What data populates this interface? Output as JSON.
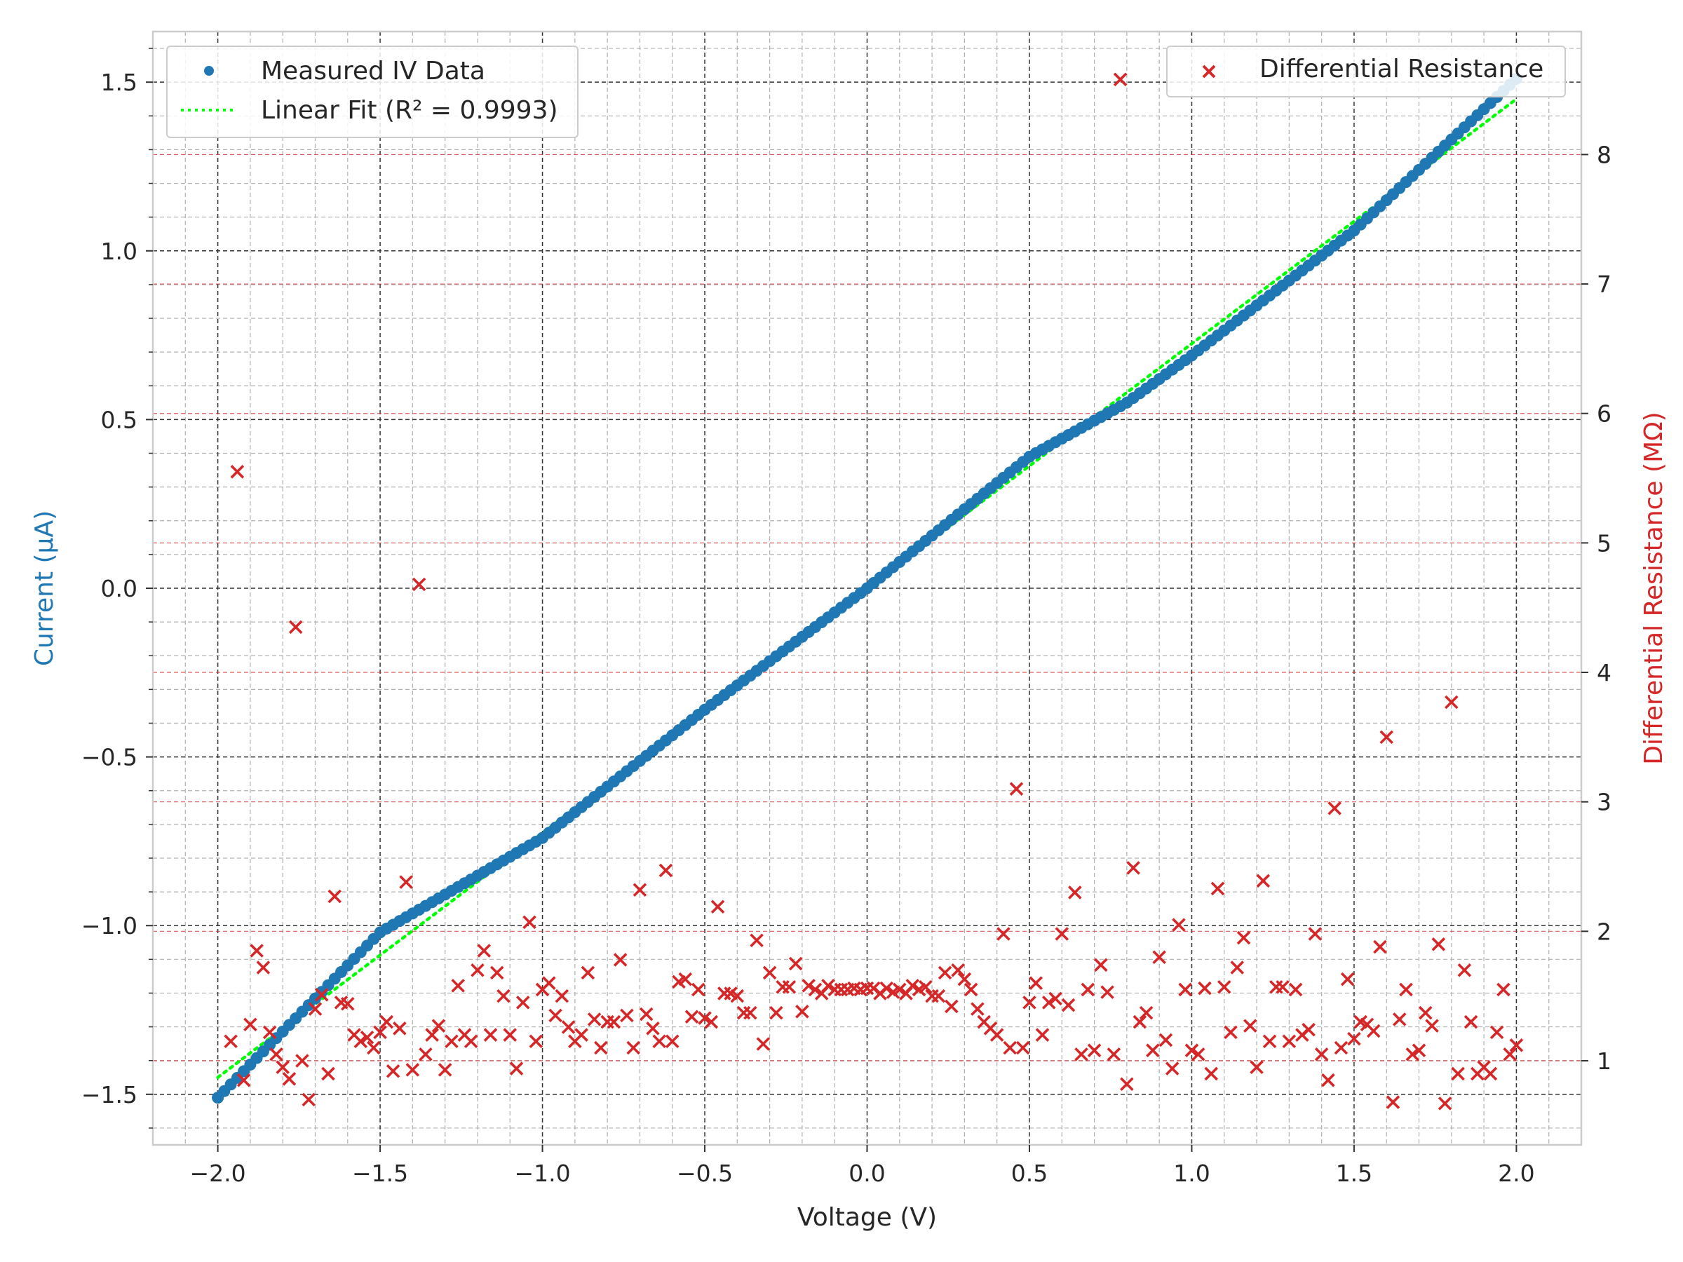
{
  "chart_data": {
    "type": "scatter",
    "title": "",
    "xlabel": "Voltage (V)",
    "ylabel_left": "Current (µA)",
    "ylabel_right": "Differential Resistance (MΩ)",
    "xlim": [
      -2.2,
      2.2
    ],
    "ylim_left": [
      -1.65,
      1.65
    ],
    "ylim_right": [
      0.35,
      8.95
    ],
    "x_ticks": [
      -2.0,
      -1.5,
      -1.0,
      -0.5,
      0.0,
      0.5,
      1.0,
      1.5,
      2.0
    ],
    "x_tick_labels": [
      "−2.0",
      "−1.5",
      "−1.0",
      "−0.5",
      "0.0",
      "0.5",
      "1.0",
      "1.5",
      "2.0"
    ],
    "y_left_ticks": [
      -1.5,
      -1.0,
      -0.5,
      0.0,
      0.5,
      1.0,
      1.5
    ],
    "y_left_tick_labels": [
      "−1.5",
      "−1.0",
      "−0.5",
      "0.0",
      "0.5",
      "1.0",
      "1.5"
    ],
    "y_right_ticks": [
      1,
      2,
      3,
      4,
      5,
      6,
      7,
      8
    ],
    "y_right_tick_labels": [
      "1",
      "2",
      "3",
      "4",
      "5",
      "6",
      "7",
      "8"
    ],
    "grid": true,
    "legend_left": {
      "placement": "top-left",
      "entries": [
        "Measured IV Data",
        "Linear Fit (R² = 0.9993)"
      ]
    },
    "legend_right": {
      "placement": "top-right",
      "entries": [
        "Differential Resistance"
      ]
    },
    "colors": {
      "iv": "#1f77b4",
      "fit": "#00ff00",
      "resistance": "#d62728",
      "left_label": "#1f77b4",
      "right_label": "#d62728"
    },
    "series": [
      {
        "name": "Measured IV Data",
        "type": "scatter",
        "axis": "left",
        "model": {
          "x_start": -2.0,
          "x_end": 2.0,
          "n_points": 201,
          "y_at": [
            [
              -2.0,
              -1.51
            ],
            [
              -1.5,
              -1.02
            ],
            [
              -1.0,
              -0.74
            ],
            [
              -0.5,
              -0.36
            ],
            [
              0.0,
              0.0
            ],
            [
              0.5,
              0.39
            ],
            [
              0.8,
              0.55
            ],
            [
              1.0,
              0.69
            ],
            [
              1.5,
              1.06
            ],
            [
              2.0,
              1.51
            ]
          ]
        }
      },
      {
        "name": "Linear Fit (R² = 0.9993)",
        "type": "line",
        "style": "dotted",
        "axis": "left",
        "points": [
          [
            -2.0,
            -1.45
          ],
          [
            2.0,
            1.45
          ]
        ]
      },
      {
        "name": "Differential Resistance",
        "type": "scatter",
        "axis": "right",
        "marker": "x",
        "points": [
          [
            -1.96,
            1.15
          ],
          [
            -1.94,
            5.55
          ],
          [
            -1.92,
            0.85
          ],
          [
            -1.9,
            1.28
          ],
          [
            -1.88,
            1.85
          ],
          [
            -1.86,
            1.72
          ],
          [
            -1.84,
            1.22
          ],
          [
            -1.82,
            1.05
          ],
          [
            -1.8,
            0.95
          ],
          [
            -1.78,
            0.86
          ],
          [
            -1.76,
            4.35
          ],
          [
            -1.74,
            1.0
          ],
          [
            -1.72,
            0.7
          ],
          [
            -1.7,
            1.4
          ],
          [
            -1.68,
            1.51
          ],
          [
            -1.66,
            0.9
          ],
          [
            -1.64,
            2.27
          ],
          [
            -1.62,
            1.45
          ],
          [
            -1.6,
            1.44
          ],
          [
            -1.58,
            1.2
          ],
          [
            -1.56,
            1.15
          ],
          [
            -1.54,
            1.18
          ],
          [
            -1.52,
            1.1
          ],
          [
            -1.5,
            1.22
          ],
          [
            -1.48,
            1.3
          ],
          [
            -1.46,
            0.92
          ],
          [
            -1.44,
            1.25
          ],
          [
            -1.42,
            2.38
          ],
          [
            -1.4,
            0.93
          ],
          [
            -1.38,
            4.68
          ],
          [
            -1.36,
            1.05
          ],
          [
            -1.34,
            1.2
          ],
          [
            -1.32,
            1.27
          ],
          [
            -1.3,
            0.93
          ],
          [
            -1.28,
            1.15
          ],
          [
            -1.26,
            1.58
          ],
          [
            -1.24,
            1.2
          ],
          [
            -1.22,
            1.15
          ],
          [
            -1.2,
            1.7
          ],
          [
            -1.18,
            1.85
          ],
          [
            -1.16,
            1.2
          ],
          [
            -1.14,
            1.68
          ],
          [
            -1.12,
            1.5
          ],
          [
            -1.1,
            1.2
          ],
          [
            -1.08,
            0.94
          ],
          [
            -1.06,
            1.45
          ],
          [
            -1.04,
            2.07
          ],
          [
            -1.02,
            1.15
          ],
          [
            -1.0,
            1.55
          ],
          [
            -0.98,
            1.6
          ],
          [
            -0.96,
            1.35
          ],
          [
            -0.94,
            1.5
          ],
          [
            -0.92,
            1.26
          ],
          [
            -0.9,
            1.15
          ],
          [
            -0.88,
            1.2
          ],
          [
            -0.86,
            1.68
          ],
          [
            -0.84,
            1.32
          ],
          [
            -0.82,
            1.1
          ],
          [
            -0.8,
            1.3
          ],
          [
            -0.78,
            1.3
          ],
          [
            -0.76,
            1.78
          ],
          [
            -0.74,
            1.35
          ],
          [
            -0.72,
            1.1
          ],
          [
            -0.7,
            2.32
          ],
          [
            -0.68,
            1.36
          ],
          [
            -0.66,
            1.25
          ],
          [
            -0.64,
            1.15
          ],
          [
            -0.62,
            2.47
          ],
          [
            -0.6,
            1.15
          ],
          [
            -0.58,
            1.61
          ],
          [
            -0.56,
            1.63
          ],
          [
            -0.54,
            1.34
          ],
          [
            -0.52,
            1.55
          ],
          [
            -0.5,
            1.33
          ],
          [
            -0.48,
            1.3
          ],
          [
            -0.46,
            2.19
          ],
          [
            -0.44,
            1.52
          ],
          [
            -0.42,
            1.52
          ],
          [
            -0.4,
            1.5
          ],
          [
            -0.38,
            1.37
          ],
          [
            -0.36,
            1.37
          ],
          [
            -0.34,
            1.93
          ],
          [
            -0.32,
            1.13
          ],
          [
            -0.3,
            1.68
          ],
          [
            -0.28,
            1.37
          ],
          [
            -0.26,
            1.57
          ],
          [
            -0.24,
            1.57
          ],
          [
            -0.22,
            1.75
          ],
          [
            -0.2,
            1.38
          ],
          [
            -0.18,
            1.58
          ],
          [
            -0.16,
            1.55
          ],
          [
            -0.14,
            1.52
          ],
          [
            -0.12,
            1.58
          ],
          [
            -0.1,
            1.55
          ],
          [
            -0.08,
            1.55
          ],
          [
            -0.06,
            1.55
          ],
          [
            -0.04,
            1.56
          ],
          [
            -0.02,
            1.55
          ],
          [
            0.0,
            1.56
          ],
          [
            0.02,
            1.56
          ],
          [
            0.04,
            1.52
          ],
          [
            0.06,
            1.56
          ],
          [
            0.08,
            1.53
          ],
          [
            0.1,
            1.55
          ],
          [
            0.12,
            1.52
          ],
          [
            0.14,
            1.58
          ],
          [
            0.16,
            1.55
          ],
          [
            0.18,
            1.57
          ],
          [
            0.2,
            1.5
          ],
          [
            0.22,
            1.5
          ],
          [
            0.24,
            1.68
          ],
          [
            0.26,
            1.42
          ],
          [
            0.28,
            1.7
          ],
          [
            0.3,
            1.63
          ],
          [
            0.32,
            1.55
          ],
          [
            0.34,
            1.4
          ],
          [
            0.36,
            1.3
          ],
          [
            0.38,
            1.25
          ],
          [
            0.4,
            1.2
          ],
          [
            0.42,
            1.98
          ],
          [
            0.44,
            1.1
          ],
          [
            0.46,
            3.1
          ],
          [
            0.48,
            1.1
          ],
          [
            0.5,
            1.45
          ],
          [
            0.52,
            1.6
          ],
          [
            0.54,
            1.2
          ],
          [
            0.56,
            1.45
          ],
          [
            0.58,
            1.48
          ],
          [
            0.6,
            1.98
          ],
          [
            0.62,
            1.43
          ],
          [
            0.64,
            2.3
          ],
          [
            0.66,
            1.05
          ],
          [
            0.68,
            1.55
          ],
          [
            0.7,
            1.08
          ],
          [
            0.72,
            1.74
          ],
          [
            0.74,
            1.53
          ],
          [
            0.76,
            1.05
          ],
          [
            0.78,
            8.58
          ],
          [
            0.8,
            0.82
          ],
          [
            0.82,
            2.49
          ],
          [
            0.84,
            1.3
          ],
          [
            0.86,
            1.37
          ],
          [
            0.88,
            1.08
          ],
          [
            0.9,
            1.8
          ],
          [
            0.92,
            1.16
          ],
          [
            0.94,
            0.94
          ],
          [
            0.96,
            2.05
          ],
          [
            0.98,
            1.55
          ],
          [
            1.0,
            1.08
          ],
          [
            1.02,
            1.05
          ],
          [
            1.04,
            1.56
          ],
          [
            1.06,
            0.9
          ],
          [
            1.08,
            2.33
          ],
          [
            1.1,
            1.57
          ],
          [
            1.12,
            1.22
          ],
          [
            1.14,
            1.72
          ],
          [
            1.16,
            1.95
          ],
          [
            1.18,
            1.27
          ],
          [
            1.2,
            0.95
          ],
          [
            1.22,
            2.39
          ],
          [
            1.24,
            1.15
          ],
          [
            1.26,
            1.57
          ],
          [
            1.28,
            1.57
          ],
          [
            1.3,
            1.15
          ],
          [
            1.32,
            1.55
          ],
          [
            1.34,
            1.2
          ],
          [
            1.36,
            1.24
          ],
          [
            1.38,
            1.98
          ],
          [
            1.4,
            1.05
          ],
          [
            1.42,
            0.85
          ],
          [
            1.44,
            2.95
          ],
          [
            1.46,
            1.1
          ],
          [
            1.48,
            1.63
          ],
          [
            1.5,
            1.17
          ],
          [
            1.52,
            1.3
          ],
          [
            1.54,
            1.28
          ],
          [
            1.56,
            1.23
          ],
          [
            1.58,
            1.88
          ],
          [
            1.6,
            3.5
          ],
          [
            1.62,
            0.68
          ],
          [
            1.64,
            1.32
          ],
          [
            1.66,
            1.55
          ],
          [
            1.68,
            1.05
          ],
          [
            1.7,
            1.08
          ],
          [
            1.72,
            1.37
          ],
          [
            1.74,
            1.27
          ],
          [
            1.76,
            1.9
          ],
          [
            1.78,
            0.67
          ],
          [
            1.8,
            3.77
          ],
          [
            1.82,
            0.9
          ],
          [
            1.84,
            1.7
          ],
          [
            1.86,
            1.3
          ],
          [
            1.88,
            0.9
          ],
          [
            1.9,
            0.95
          ],
          [
            1.92,
            0.9
          ],
          [
            1.94,
            1.22
          ],
          [
            1.96,
            1.55
          ],
          [
            1.98,
            1.05
          ],
          [
            2.0,
            1.12
          ]
        ]
      }
    ]
  }
}
